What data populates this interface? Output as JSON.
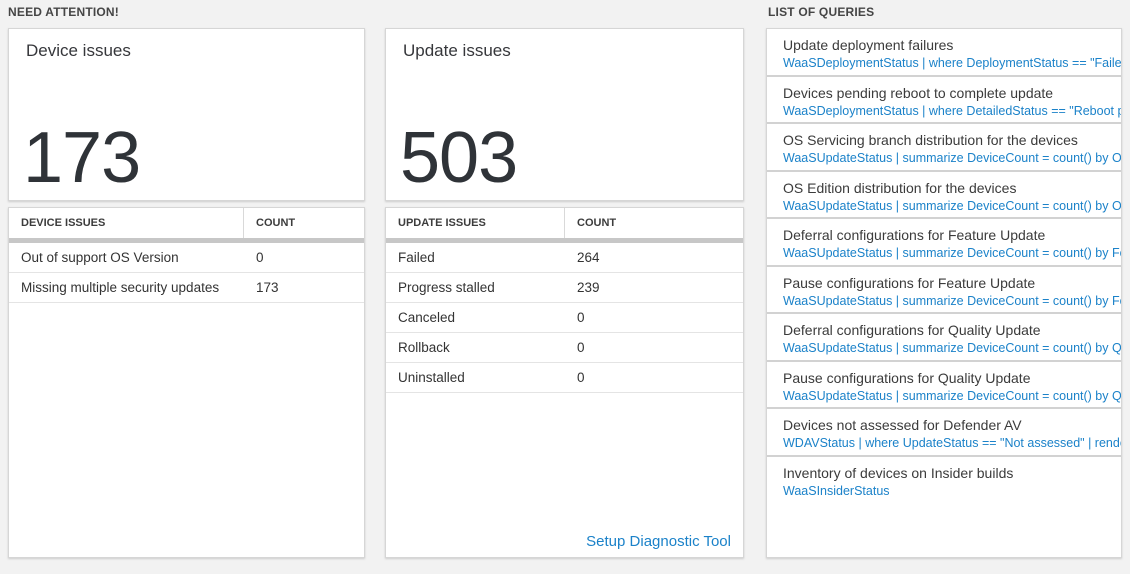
{
  "colors": {
    "page_bg": "#f2f2f2",
    "accent_blue": "#1b82c9",
    "big_number_color": "#2f3338"
  },
  "need_attention": {
    "section_title": "NEED ATTENTION!",
    "device_card": {
      "title": "Device issues",
      "count": "173",
      "table": {
        "headers": [
          "DEVICE ISSUES",
          "COUNT"
        ],
        "rows": [
          {
            "label": "Out of support OS Version",
            "count": "0"
          },
          {
            "label": "Missing multiple security updates",
            "count": "173"
          }
        ]
      }
    },
    "update_card": {
      "title": "Update issues",
      "count": "503",
      "table": {
        "headers": [
          "UPDATE ISSUES",
          "COUNT"
        ],
        "rows": [
          {
            "label": "Failed",
            "count": "264"
          },
          {
            "label": "Progress stalled",
            "count": "239"
          },
          {
            "label": "Canceled",
            "count": "0"
          },
          {
            "label": "Rollback",
            "count": "0"
          },
          {
            "label": "Uninstalled",
            "count": "0"
          }
        ]
      },
      "footer_link": "Setup Diagnostic Tool"
    }
  },
  "queries": {
    "section_title": "LIST OF QUERIES",
    "items": [
      {
        "title": "Update deployment failures",
        "query": "WaaSDeploymentStatus | where DeploymentStatus == \"Failed\" |..."
      },
      {
        "title": "Devices pending reboot to complete update",
        "query": "WaaSDeploymentStatus | where DetailedStatus == \"Reboot pend..."
      },
      {
        "title": "OS Servicing branch distribution for the devices",
        "query": "WaaSUpdateStatus | summarize DeviceCount = count() by OSSer..."
      },
      {
        "title": "OS Edition distribution for the devices",
        "query": "WaaSUpdateStatus | summarize DeviceCount = count() by OSEdit..."
      },
      {
        "title": "Deferral configurations for Feature Update",
        "query": "WaaSUpdateStatus | summarize DeviceCount = count() by Featur..."
      },
      {
        "title": "Pause configurations for Feature Update",
        "query": "WaaSUpdateStatus | summarize DeviceCount = count() by Featur..."
      },
      {
        "title": "Deferral configurations for Quality Update",
        "query": "WaaSUpdateStatus | summarize DeviceCount = count() by Qualit..."
      },
      {
        "title": "Pause configurations for Quality Update",
        "query": "WaaSUpdateStatus | summarize DeviceCount = count() by Qualit..."
      },
      {
        "title": "Devices not assessed for Defender AV",
        "query": "WDAVStatus | where UpdateStatus == \"Not assessed\" | render ta..."
      },
      {
        "title": "Inventory of devices on Insider builds",
        "query": "WaaSInsiderStatus"
      }
    ]
  }
}
